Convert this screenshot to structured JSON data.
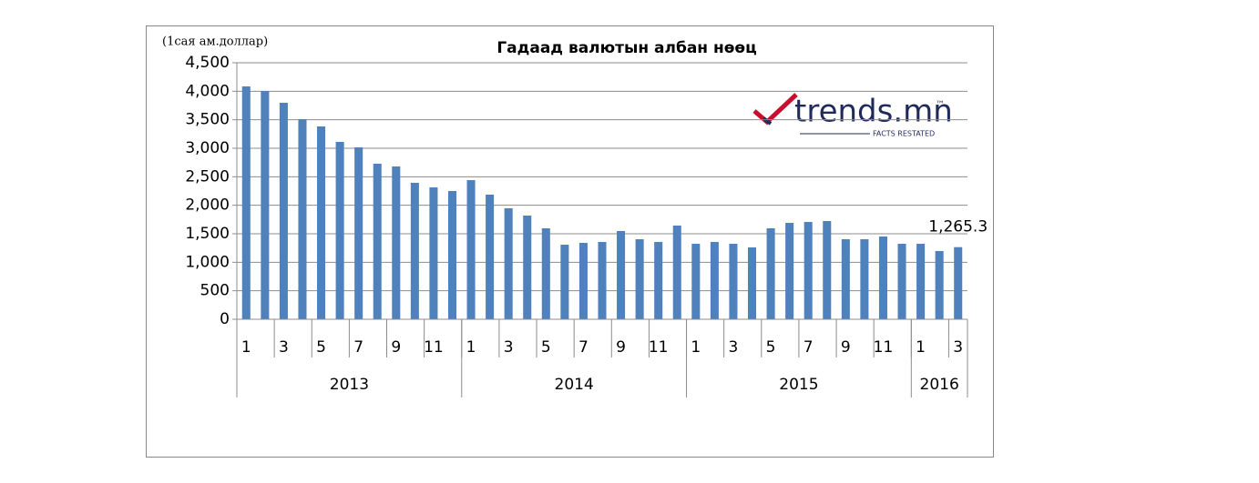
{
  "chart_data": {
    "type": "bar",
    "title": "Гадаад валютын албан нөөц",
    "y_label": "(1сая ам.доллар)",
    "logo": {
      "text": "trends.mn",
      "tm": "™",
      "tagline": "FACTS RESTATED"
    },
    "color": "#4f81bd",
    "grid": true,
    "categories": [
      "1",
      null,
      "3",
      null,
      "5",
      null,
      "7",
      null,
      "9",
      null,
      "11",
      null,
      "1",
      null,
      "3",
      null,
      "5",
      null,
      "7",
      null,
      "9",
      null,
      "11",
      null,
      "1",
      null,
      "3",
      null,
      "5",
      null,
      "7",
      null,
      "9",
      null,
      "11",
      null,
      "1",
      null,
      "3"
    ],
    "x_groups": [
      {
        "label": "2013",
        "size": 12
      },
      {
        "label": "2014",
        "size": 12
      },
      {
        "label": "2015",
        "size": 12
      },
      {
        "label": "2016",
        "size": 3
      }
    ],
    "values": [
      4085,
      4005,
      3798,
      3510,
      3383,
      3112,
      3016,
      2729,
      2681,
      2394,
      2314,
      2250,
      2441,
      2186,
      1947,
      1819,
      1596,
      1308,
      1340,
      1356,
      1548,
      1404,
      1356,
      1644,
      1324,
      1356,
      1324,
      1261,
      1596,
      1691,
      1707,
      1723,
      1404,
      1404,
      1452,
      1324,
      1324,
      1197,
      1265.3
    ],
    "value_labels": [
      null,
      null,
      null,
      null,
      null,
      null,
      null,
      null,
      null,
      null,
      null,
      null,
      null,
      null,
      null,
      null,
      null,
      null,
      null,
      null,
      null,
      null,
      null,
      null,
      null,
      null,
      null,
      null,
      null,
      null,
      null,
      null,
      null,
      null,
      null,
      null,
      null,
      null,
      "1,265.3"
    ],
    "ylim": [
      0,
      4500
    ],
    "yticks": [
      0,
      500,
      {
        "value": 1000,
        "label": "1,000"
      },
      {
        "value": 1500,
        "label": "1,500"
      },
      {
        "value": 2000,
        "label": "2,000"
      },
      {
        "value": 2500,
        "label": "2,500"
      },
      {
        "value": 3000,
        "label": "3,000"
      },
      {
        "value": 3500,
        "label": "3,500"
      },
      {
        "value": 4000,
        "label": "4,000"
      },
      {
        "value": 4500,
        "label": "4,500"
      }
    ]
  }
}
